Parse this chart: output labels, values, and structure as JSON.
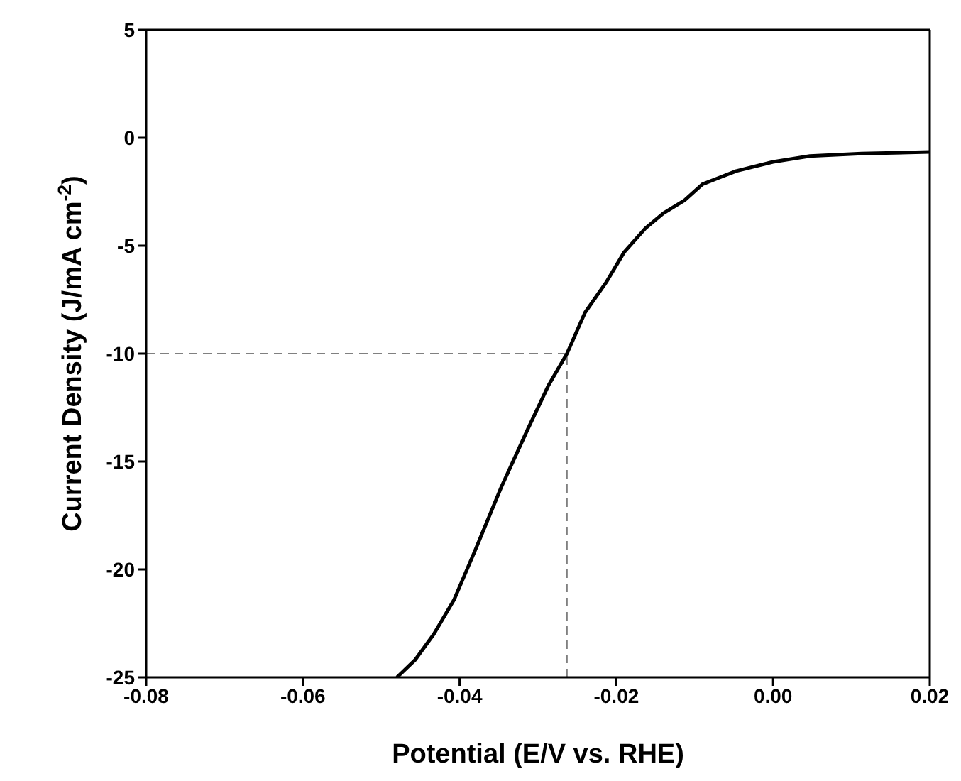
{
  "chart_data": {
    "type": "line",
    "xlabel": "Potential (E/V vs. RHE)",
    "ylabel": "Current Density (J/mA cm$^{-2}$)",
    "x": [
      -0.048,
      -0.0457,
      -0.0433,
      -0.0407,
      -0.038,
      -0.0347,
      -0.0313,
      -0.0287,
      -0.0263,
      -0.024,
      -0.0213,
      -0.019,
      -0.0163,
      -0.014,
      -0.0113,
      -0.009,
      -0.0047,
      0.0,
      0.0047,
      0.0113,
      0.02
    ],
    "series": [
      {
        "color": "#000000",
        "values": [
          -25,
          -24.2,
          -23.0,
          -21.4,
          -19.1,
          -16.2,
          -13.5,
          -11.5,
          -10.0,
          -8.1,
          -6.7,
          -5.3,
          -4.2,
          -3.5,
          -2.9,
          -2.15,
          -1.54,
          -1.12,
          -0.85,
          -0.73,
          -0.66
        ]
      }
    ],
    "xlim": [
      -0.08,
      0.02
    ],
    "xticks": [
      -0.08,
      -0.06,
      -0.04,
      -0.02,
      {
        "value": 0,
        "label": "0.00"
      },
      0.02
    ],
    "ylim": [
      -25,
      5
    ],
    "yticks": [
      -25,
      -20,
      -15,
      -10,
      -5,
      0,
      5
    ],
    "ref_lines": [
      {
        "axis": "y",
        "value": -10,
        "color": "#808080",
        "line_style": "dashed"
      },
      {
        "axis": "x",
        "value": -0.0263,
        "color": "#808080",
        "line_style": "dashed"
      }
    ],
    "legend": false,
    "marker": "none",
    "line_style": "solid"
  }
}
